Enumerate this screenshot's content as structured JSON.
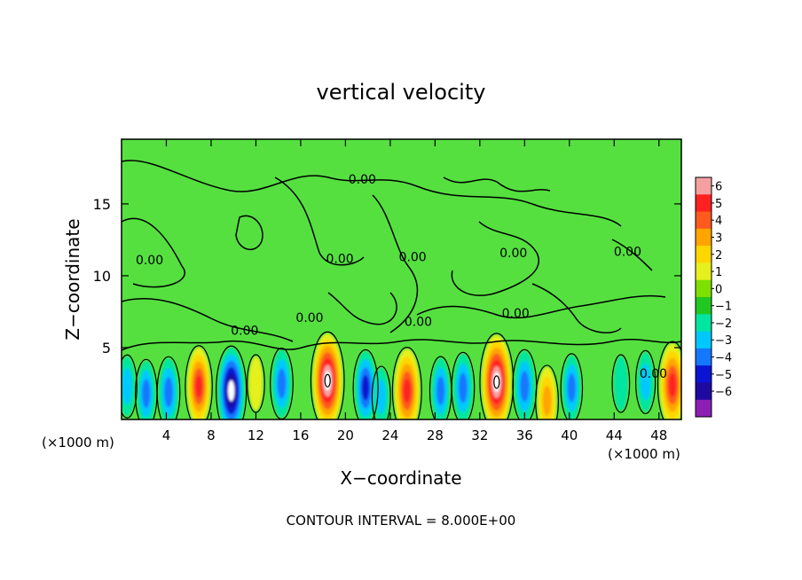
{
  "chart_data": {
    "type": "heatmap",
    "title": "vertical velocity",
    "xlabel": "X−coordinate",
    "ylabel": "Z−coordinate",
    "x_unit_left": "(×1000 m)",
    "x_unit_right": "(×1000 m)",
    "xlim": [
      0,
      50
    ],
    "ylim": [
      0,
      19.5
    ],
    "x_ticks": [
      4,
      8,
      12,
      16,
      20,
      24,
      28,
      32,
      36,
      40,
      44,
      48
    ],
    "x_tick_labels": [
      "4",
      "8",
      "12",
      "16",
      "20",
      "24",
      "28",
      "32",
      "36",
      "40",
      "44",
      "48"
    ],
    "y_ticks": [
      5,
      10,
      15
    ],
    "y_tick_labels": [
      "5",
      "10",
      "15"
    ],
    "footer": "CONTOUR INTERVAL = 8.000E+00",
    "contour_label": "0.00",
    "contour_label_positions": [
      [
        21.5,
        16.4
      ],
      [
        2.5,
        10.8
      ],
      [
        19.5,
        10.9
      ],
      [
        26,
        11.0
      ],
      [
        35,
        11.3
      ],
      [
        45.2,
        11.4
      ],
      [
        16.8,
        6.8
      ],
      [
        11,
        5.9
      ],
      [
        26.5,
        6.5
      ],
      [
        35.2,
        7.1
      ],
      [
        47.5,
        2.9
      ]
    ],
    "colorbar": {
      "labels": [
        "6",
        "5",
        "4",
        "3",
        "2",
        "1",
        "0",
        "−1",
        "−2",
        "−3",
        "−4",
        "−5",
        "−6"
      ],
      "colors": [
        "#f4a0a0",
        "#ff2020",
        "#ff5a1e",
        "#ffa500",
        "#ffd700",
        "#e6f01e",
        "#7ee000",
        "#22c822",
        "#00e6a0",
        "#00c8ff",
        "#1478ff",
        "#0a14d2",
        "#1e0aa0",
        "#8c1eb4"
      ]
    },
    "background_color": "#55e040",
    "lower_cells": [
      {
        "x": 0.5,
        "z": 2.3,
        "w": -2.5
      },
      {
        "x": 2.2,
        "z": 1.8,
        "w": -3.5
      },
      {
        "x": 4.2,
        "z": 1.9,
        "w": -4
      },
      {
        "x": 6.9,
        "z": 2.3,
        "w": 6
      },
      {
        "x": 9.8,
        "z": 2.0,
        "w": -7.5
      },
      {
        "x": 12.0,
        "z": 2.5,
        "w": 1.5
      },
      {
        "x": 14.3,
        "z": 2.5,
        "w": -4
      },
      {
        "x": 18.4,
        "z": 2.7,
        "w": 9
      },
      {
        "x": 21.8,
        "z": 2.2,
        "w": -5
      },
      {
        "x": 23.2,
        "z": 1.6,
        "w": -2
      },
      {
        "x": 25.5,
        "z": 2.0,
        "w": 7
      },
      {
        "x": 28.5,
        "z": 2.0,
        "w": -3.5
      },
      {
        "x": 30.5,
        "z": 2.2,
        "w": -4
      },
      {
        "x": 33.5,
        "z": 2.6,
        "w": 9
      },
      {
        "x": 36.0,
        "z": 2.3,
        "w": -4.5
      },
      {
        "x": 38.0,
        "z": 1.3,
        "w": 4
      },
      {
        "x": 40.2,
        "z": 2.2,
        "w": -3.5
      },
      {
        "x": 44.6,
        "z": 2.5,
        "w": -1.5
      },
      {
        "x": 46.8,
        "z": 2.6,
        "w": -2.5
      },
      {
        "x": 49.2,
        "z": 2.4,
        "w": 7
      }
    ]
  }
}
